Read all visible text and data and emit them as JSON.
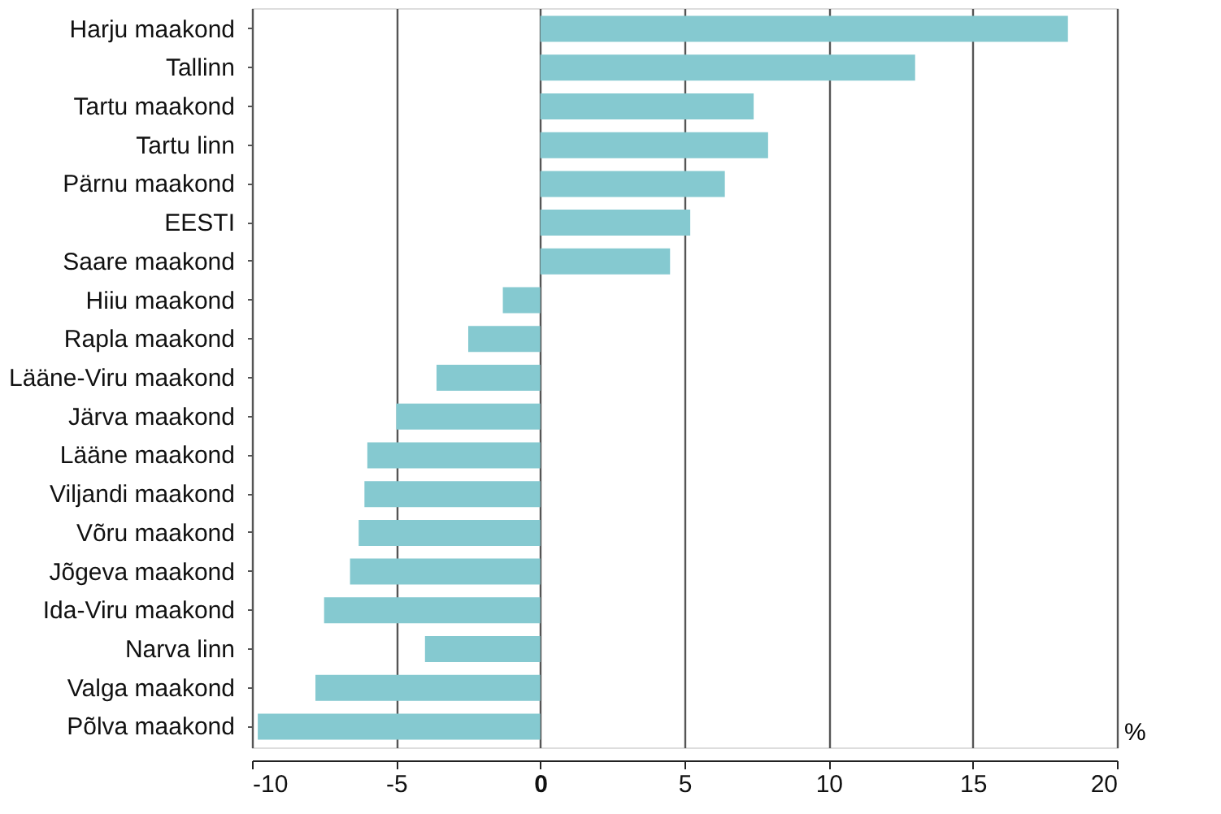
{
  "chart_data": {
    "type": "bar",
    "orientation": "horizontal",
    "xlabel": "%",
    "categories": [
      "Harju maakond",
      "Tallinn",
      "Tartu maakond",
      "Tartu linn",
      "Pärnu maakond",
      "EESTI",
      "Saare maakond",
      "Hiiu maakond",
      "Rapla maakond",
      "Lääne-Viru maakond",
      "Järva maakond",
      "Lääne maakond",
      "Viljandi maakond",
      "Võru maakond",
      "Jõgeva maakond",
      "Ida-Viru maakond",
      "Narva linn",
      "Valga maakond",
      "Põlva maakond"
    ],
    "values": [
      18.3,
      13.0,
      7.4,
      7.9,
      6.4,
      5.2,
      4.5,
      -1.3,
      -2.5,
      -3.6,
      -5.0,
      -6.0,
      -6.1,
      -6.3,
      -6.6,
      -7.5,
      -4.0,
      -7.8,
      -9.8
    ],
    "color": "#85c9d0",
    "xlim": [
      -10,
      20
    ],
    "xticks": [
      -10,
      -5,
      0,
      5,
      10,
      15,
      20
    ],
    "grid": "x"
  }
}
